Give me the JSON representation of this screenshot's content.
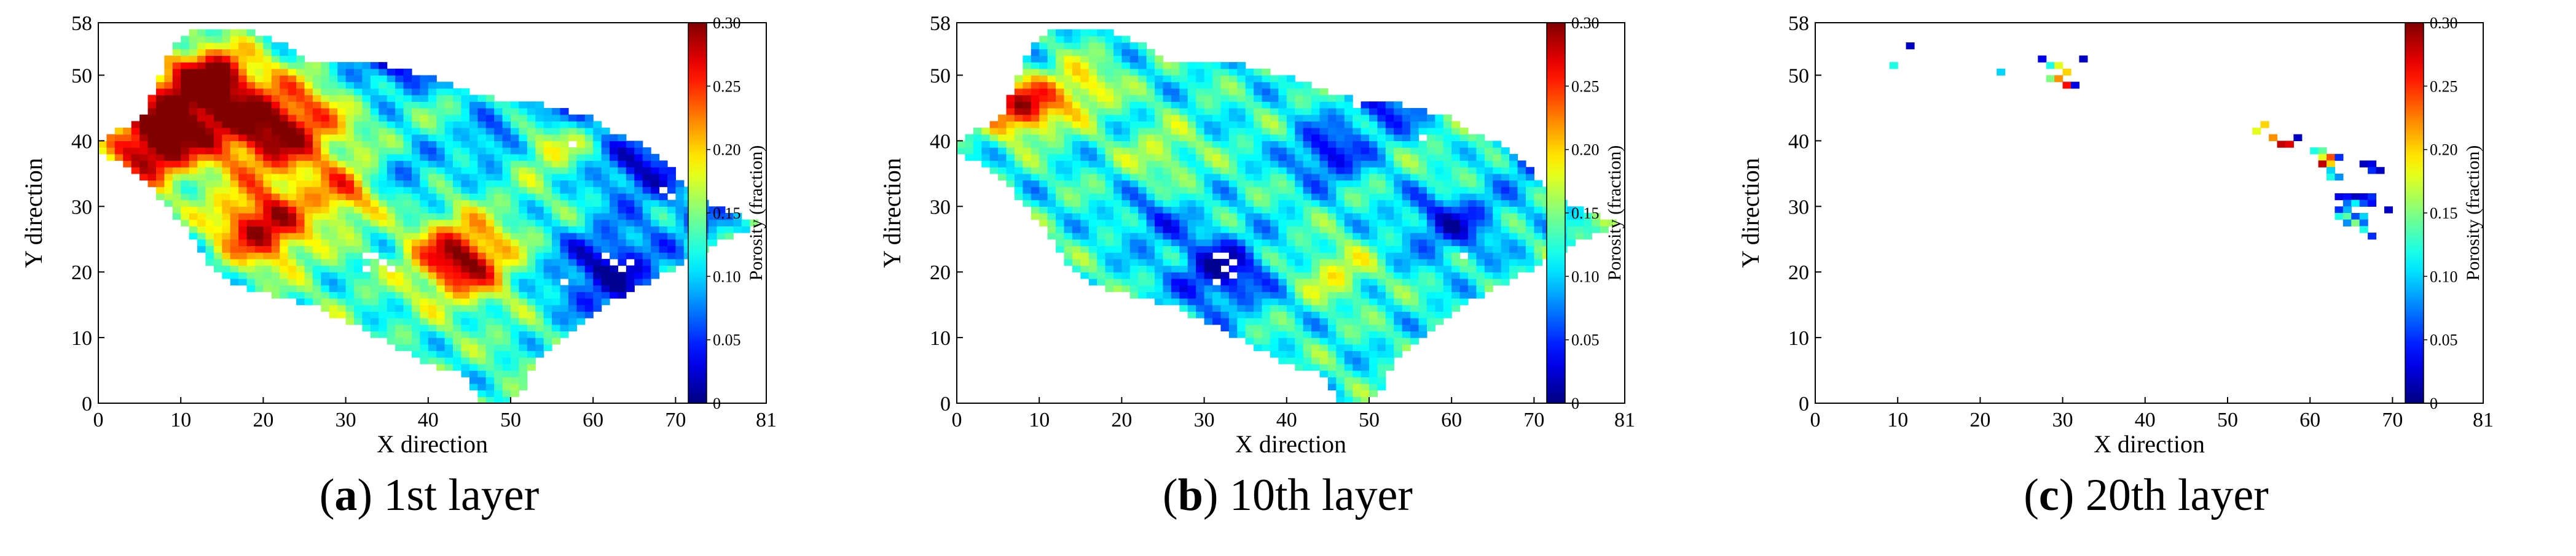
{
  "panels": [
    {
      "id": "a",
      "caption_letter": "a",
      "caption_text": "1st layer"
    },
    {
      "id": "b",
      "caption_letter": "b",
      "caption_text": "10th layer"
    },
    {
      "id": "c",
      "caption_letter": "c",
      "caption_text": "20th layer"
    }
  ],
  "chart_data": [
    {
      "type": "heatmap",
      "title": "",
      "xlabel": "X direction",
      "ylabel": "Y direction",
      "xlim": [
        0,
        81
      ],
      "ylim": [
        0,
        58
      ],
      "xticks": [
        0,
        10,
        20,
        30,
        40,
        50,
        60,
        70,
        81
      ],
      "yticks": [
        0,
        10,
        20,
        30,
        40,
        50,
        58
      ],
      "colorbar": {
        "label": "Porosity (fraction)",
        "range": [
          0,
          0.3
        ],
        "ticks": [
          "0",
          "0.05",
          "0.10",
          "0.15",
          "0.20",
          "0.25",
          "0.30"
        ],
        "colormap": "jet"
      },
      "grid": false,
      "field": "porosity map, active cells only (white = inactive)",
      "dominant_range": [
        0.05,
        0.3
      ],
      "high_value_zones": [
        [
          10,
          44,
          0.28
        ],
        [
          22,
          42,
          0.28
        ],
        [
          20,
          27,
          0.27
        ],
        [
          44,
          22,
          0.28
        ],
        [
          8,
          38,
          0.25
        ]
      ],
      "low_value_zones": [
        [
          36,
          53,
          0.04
        ],
        [
          62,
          20,
          0.03
        ],
        [
          66,
          36,
          0.04
        ],
        [
          55,
          45,
          0.06
        ]
      ]
    },
    {
      "type": "heatmap",
      "title": "",
      "xlabel": "X direction",
      "ylabel": "Y direction",
      "xlim": [
        0,
        81
      ],
      "ylim": [
        0,
        58
      ],
      "xticks": [
        0,
        10,
        20,
        30,
        40,
        50,
        60,
        70,
        81
      ],
      "yticks": [
        0,
        10,
        20,
        30,
        40,
        50,
        58
      ],
      "colorbar": {
        "label": "Porosity (fraction)",
        "range": [
          0,
          0.3
        ],
        "ticks": [
          "0",
          "0.05",
          "0.10",
          "0.15",
          "0.20",
          "0.25",
          "0.30"
        ],
        "colormap": "jet"
      },
      "grid": false,
      "field": "porosity map, active cells only (white = inactive)",
      "dominant_range": [
        0.05,
        0.22
      ],
      "high_value_zones": [
        [
          8,
          45,
          0.27
        ],
        [
          15,
          48,
          0.2
        ],
        [
          46,
          20,
          0.18
        ]
      ],
      "low_value_zones": [
        [
          32,
          20,
          0.03
        ],
        [
          45,
          38,
          0.04
        ],
        [
          60,
          28,
          0.05
        ],
        [
          70,
          38,
          0.05
        ]
      ]
    },
    {
      "type": "heatmap",
      "title": "",
      "xlabel": "X direction",
      "ylabel": "Y direction",
      "xlim": [
        0,
        81
      ],
      "ylim": [
        0,
        58
      ],
      "xticks": [
        0,
        10,
        20,
        30,
        40,
        50,
        60,
        70,
        81
      ],
      "yticks": [
        0,
        10,
        20,
        30,
        40,
        50,
        58
      ],
      "colorbar": {
        "label": "Porosity (fraction)",
        "range": [
          0,
          0.3
        ],
        "ticks": [
          "0",
          "0.05",
          "0.10",
          "0.15",
          "0.20",
          "0.25",
          "0.30"
        ],
        "colormap": "jet"
      },
      "grid": false,
      "field": "porosity map, sparse active cells",
      "cells": [
        [
          9,
          51,
          0.12
        ],
        [
          11,
          54,
          0.02
        ],
        [
          22,
          50,
          0.1
        ],
        [
          27,
          52,
          0.03
        ],
        [
          28,
          51,
          0.12
        ],
        [
          29,
          51,
          0.18
        ],
        [
          30,
          50,
          0.2
        ],
        [
          28,
          49,
          0.15
        ],
        [
          29,
          49,
          0.22
        ],
        [
          30,
          48,
          0.26
        ],
        [
          31,
          48,
          0.03
        ],
        [
          32,
          52,
          0.02
        ],
        [
          53,
          41,
          0.18
        ],
        [
          54,
          42,
          0.2
        ],
        [
          55,
          40,
          0.22
        ],
        [
          56,
          39,
          0.28
        ],
        [
          57,
          39,
          0.27
        ],
        [
          58,
          40,
          0.02
        ],
        [
          60,
          38,
          0.12
        ],
        [
          61,
          38,
          0.14
        ],
        [
          61,
          37,
          0.18
        ],
        [
          62,
          37,
          0.24
        ],
        [
          61,
          36,
          0.28
        ],
        [
          62,
          36,
          0.2
        ],
        [
          62,
          35,
          0.1
        ],
        [
          62,
          34,
          0.12
        ],
        [
          63,
          34,
          0.08
        ],
        [
          63,
          37,
          0.05
        ],
        [
          66,
          36,
          0.02
        ],
        [
          67,
          36,
          0.03
        ],
        [
          67,
          35,
          0.05
        ],
        [
          68,
          35,
          0.02
        ],
        [
          63,
          31,
          0.03
        ],
        [
          64,
          31,
          0.04
        ],
        [
          65,
          31,
          0.02
        ],
        [
          66,
          31,
          0.03
        ],
        [
          67,
          31,
          0.05
        ],
        [
          64,
          30,
          0.07
        ],
        [
          65,
          30,
          0.11
        ],
        [
          66,
          30,
          0.06
        ],
        [
          67,
          30,
          0.04
        ],
        [
          69,
          29,
          0.02
        ],
        [
          63,
          29,
          0.05
        ],
        [
          64,
          29,
          0.09
        ],
        [
          63,
          28,
          0.12
        ],
        [
          64,
          28,
          0.14
        ],
        [
          65,
          28,
          0.06
        ],
        [
          66,
          28,
          0.1
        ],
        [
          64,
          27,
          0.08
        ],
        [
          65,
          27,
          0.15
        ],
        [
          66,
          27,
          0.07
        ],
        [
          66,
          26,
          0.12
        ],
        [
          67,
          25,
          0.05
        ]
      ]
    }
  ]
}
